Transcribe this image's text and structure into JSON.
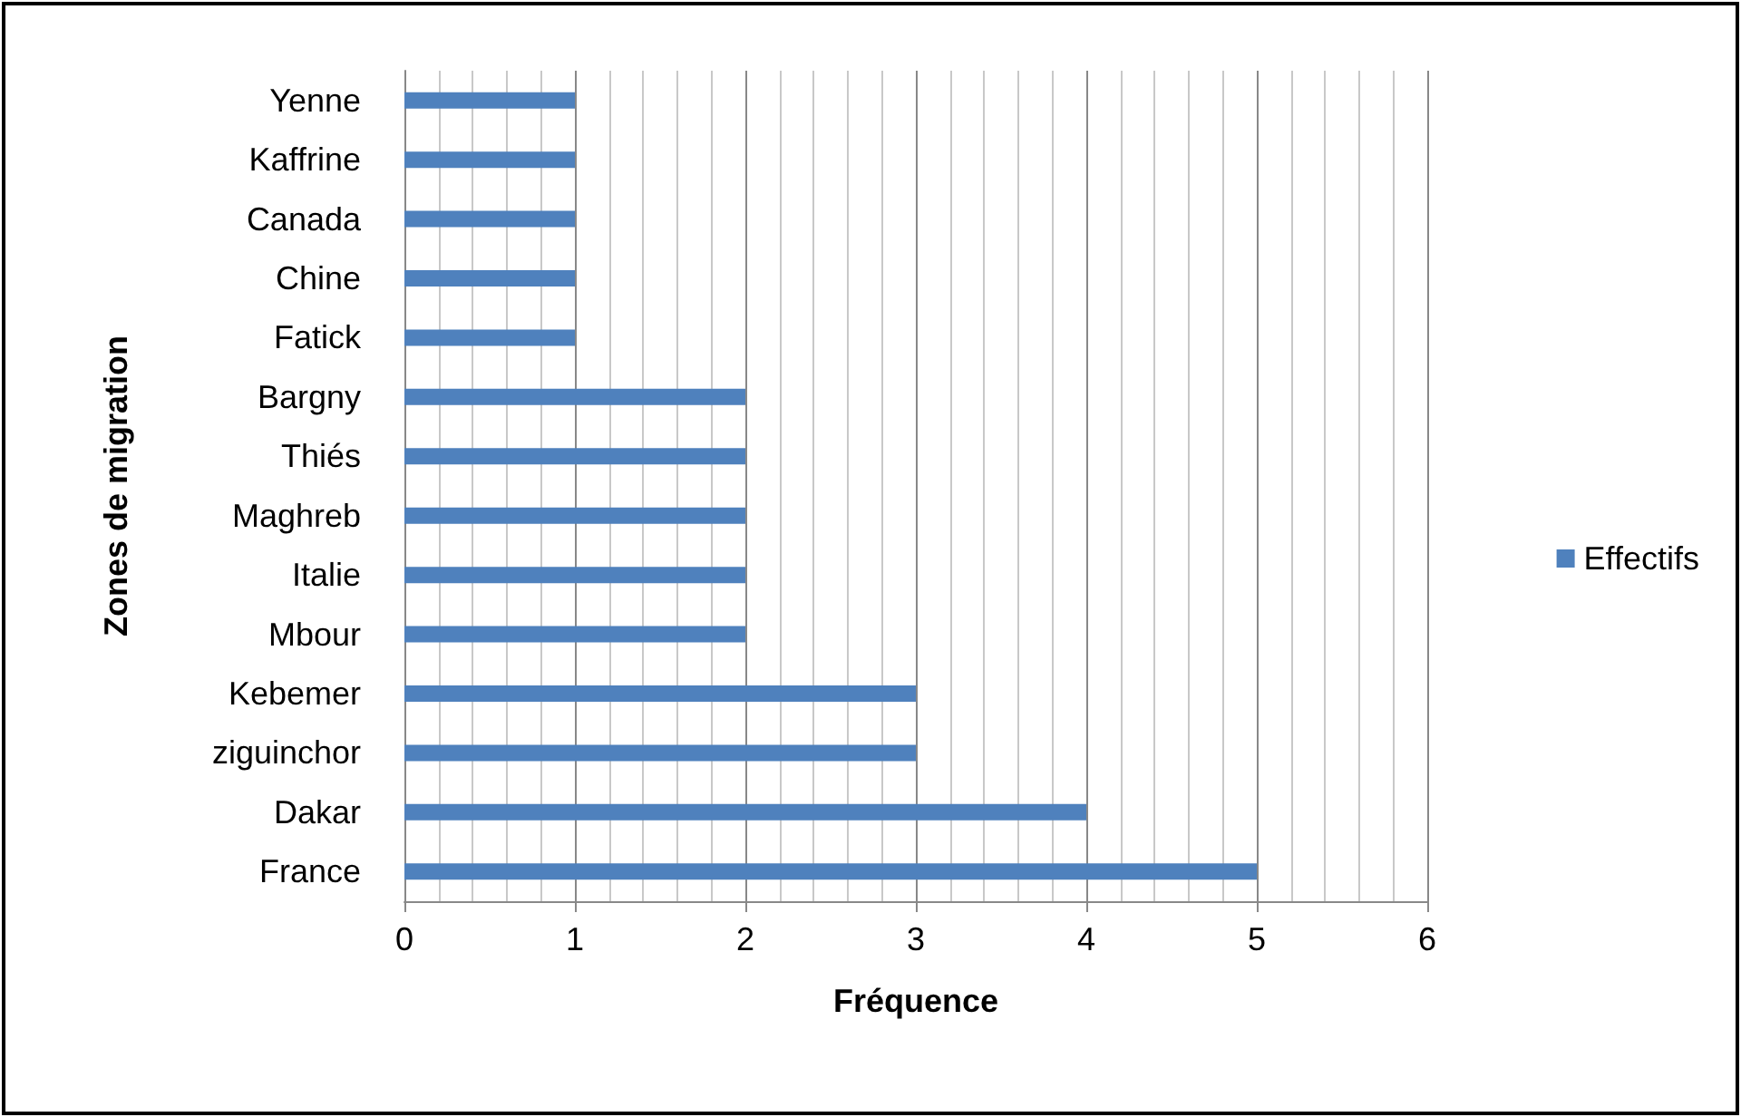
{
  "chart_data": {
    "type": "bar",
    "orientation": "horizontal",
    "xlabel": "Fréquence",
    "ylabel": "Zones de migration",
    "categories": [
      "Yenne",
      "Kaffrine",
      "Canada",
      "Chine",
      "Fatick",
      "Bargny",
      "Thiés",
      "Maghreb",
      "Italie",
      "Mbour",
      "Kebemer",
      "ziguinchor",
      "Dakar",
      "France"
    ],
    "series": [
      {
        "name": "Effectifs",
        "color": "#4f81bd",
        "values": [
          1,
          1,
          1,
          1,
          1,
          2,
          2,
          2,
          2,
          2,
          3,
          3,
          4,
          5
        ]
      }
    ],
    "xlim": [
      0,
      6
    ],
    "xticks": [
      0,
      1,
      2,
      3,
      4,
      5,
      6
    ],
    "grid": "x",
    "legend": "right"
  }
}
